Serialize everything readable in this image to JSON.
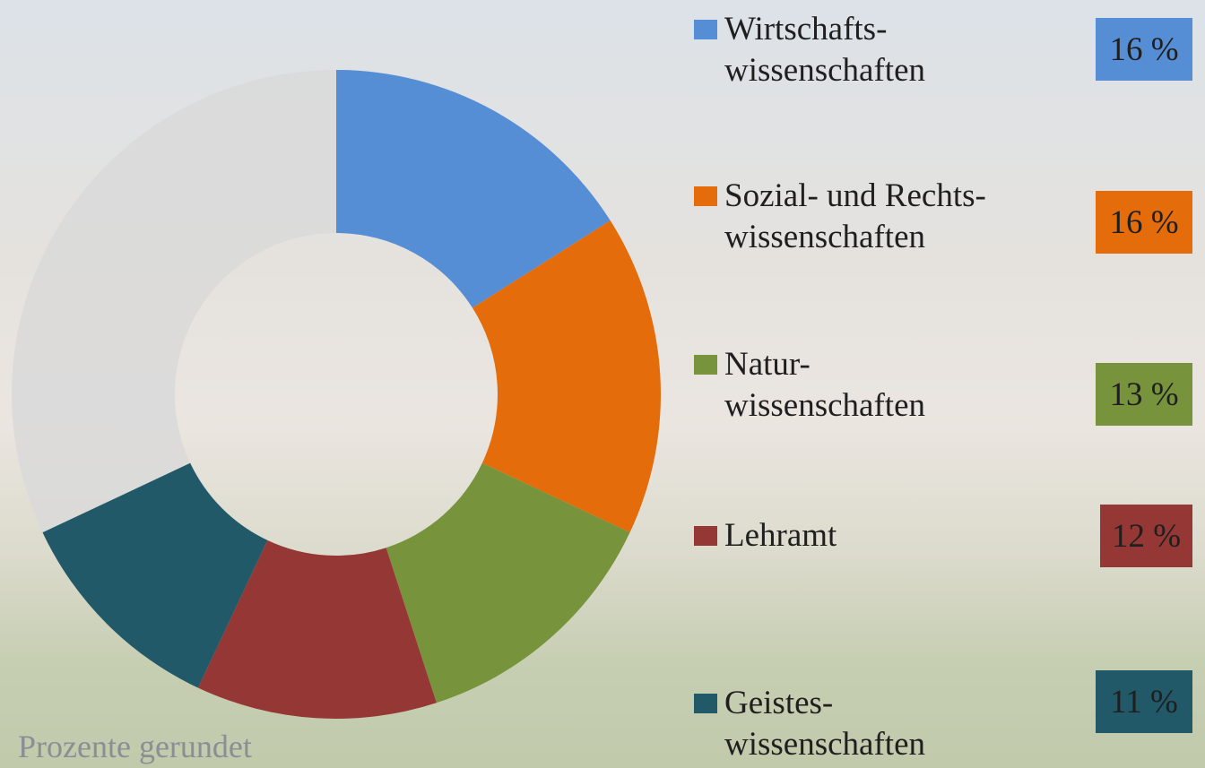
{
  "chart_data": {
    "type": "donut",
    "categories": [
      "Wirtschafts-\nwissenschaften",
      "Sozial- und Rechts-\nwissenschaften",
      "Natur-\nwissenschaften",
      "Lehramt",
      "Geistes-\nwissenschaften",
      null
    ],
    "values": [
      16,
      16,
      13,
      12,
      11,
      32
    ],
    "value_labels": [
      "16 %",
      "16 %",
      "13 %",
      "12 %",
      "11 %",
      null
    ],
    "colors": [
      "#558ed5",
      "#e46c0a",
      "#77933c",
      "#953735",
      "#215968",
      "#d9d9d9"
    ]
  },
  "footnote": "Prozente gerundet"
}
